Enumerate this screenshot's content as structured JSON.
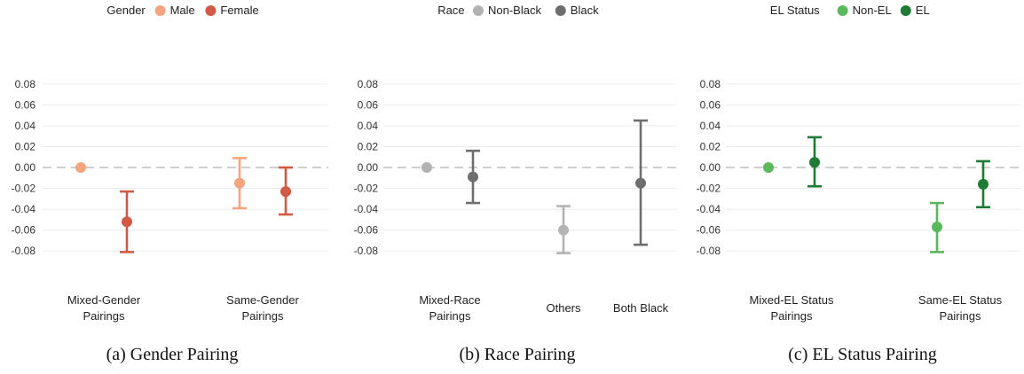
{
  "chart_data": [
    {
      "type": "scatter",
      "caption": "(a) Gender Pairing",
      "legend_title": "Gender",
      "legend_position": "top-center",
      "series": [
        {
          "name": "Male",
          "color": "#f2a57e"
        },
        {
          "name": "Female",
          "color": "#d05a45"
        }
      ],
      "categories": [
        "Mixed-Gender Pairings",
        "Same-Gender Pairings"
      ],
      "category_lines": [
        [
          "Mixed-Gender",
          "Pairings"
        ],
        [
          "Same-Gender",
          "Pairings"
        ]
      ],
      "yticks": [
        "0.08",
        "0.06",
        "0.04",
        "0.02",
        "0.00",
        "-0.02",
        "-0.04",
        "-0.06",
        "-0.08"
      ],
      "ylim": [
        -0.09,
        0.09
      ],
      "grid": true,
      "zero_line": "dashed",
      "points": [
        {
          "category": 0,
          "series": 0,
          "y": 0.0,
          "lo": null,
          "hi": null
        },
        {
          "category": 0,
          "series": 1,
          "y": -0.052,
          "lo": -0.081,
          "hi": -0.023
        },
        {
          "category": 1,
          "series": 0,
          "y": -0.015,
          "lo": -0.039,
          "hi": 0.009
        },
        {
          "category": 1,
          "series": 1,
          "y": -0.023,
          "lo": -0.045,
          "hi": 0.0
        }
      ]
    },
    {
      "type": "scatter",
      "caption": "(b) Race Pairing",
      "legend_title": "Race",
      "legend_position": "top-center",
      "series": [
        {
          "name": "Non-Black",
          "color": "#b3b3b3"
        },
        {
          "name": "Black",
          "color": "#6e6e6e"
        }
      ],
      "categories": [
        "Mixed-Race Pairings",
        "Others",
        "Both Black"
      ],
      "category_lines": [
        [
          "Mixed-Race",
          "Pairings"
        ],
        [
          "Others"
        ],
        [
          "Both Black"
        ]
      ],
      "yticks": [
        "0.08",
        "0.06",
        "0.04",
        "0.02",
        "0.00",
        "-0.02",
        "-0.04",
        "-0.06",
        "-0.08"
      ],
      "ylim": [
        -0.09,
        0.09
      ],
      "grid": true,
      "zero_line": "dashed",
      "points": [
        {
          "category": 0,
          "series": 0,
          "y": 0.0,
          "lo": null,
          "hi": null
        },
        {
          "category": 0,
          "series": 1,
          "y": -0.009,
          "lo": -0.034,
          "hi": 0.016
        },
        {
          "category": 1,
          "series": 0,
          "y": -0.06,
          "lo": -0.082,
          "hi": -0.037
        },
        {
          "category": 2,
          "series": 1,
          "y": -0.015,
          "lo": -0.074,
          "hi": 0.045
        }
      ]
    },
    {
      "type": "scatter",
      "caption": "(c) EL Status Pairing",
      "legend_title": "EL Status",
      "legend_position": "top-center",
      "series": [
        {
          "name": "Non-EL",
          "color": "#5cb85c"
        },
        {
          "name": "EL",
          "color": "#1e7a35"
        }
      ],
      "categories": [
        "Mixed-EL Status Pairings",
        "Same-EL Status Pairings"
      ],
      "category_lines": [
        [
          "Mixed-EL Status",
          "Pairings"
        ],
        [
          "Same-EL Status",
          "Pairings"
        ]
      ],
      "yticks": [
        "0.08",
        "0.06",
        "0.04",
        "0.02",
        "0.00",
        "-0.02",
        "-0.04",
        "-0.06",
        "-0.08"
      ],
      "ylim": [
        -0.09,
        0.09
      ],
      "grid": true,
      "zero_line": "dashed",
      "points": [
        {
          "category": 0,
          "series": 0,
          "y": 0.0,
          "lo": null,
          "hi": null
        },
        {
          "category": 0,
          "series": 1,
          "y": 0.005,
          "lo": -0.018,
          "hi": 0.029
        },
        {
          "category": 1,
          "series": 0,
          "y": -0.057,
          "lo": -0.081,
          "hi": -0.034
        },
        {
          "category": 1,
          "series": 1,
          "y": -0.016,
          "lo": -0.038,
          "hi": 0.006
        }
      ]
    }
  ],
  "gridline_color": "#ebebeb",
  "zero_line_color": "#cfcfcf"
}
